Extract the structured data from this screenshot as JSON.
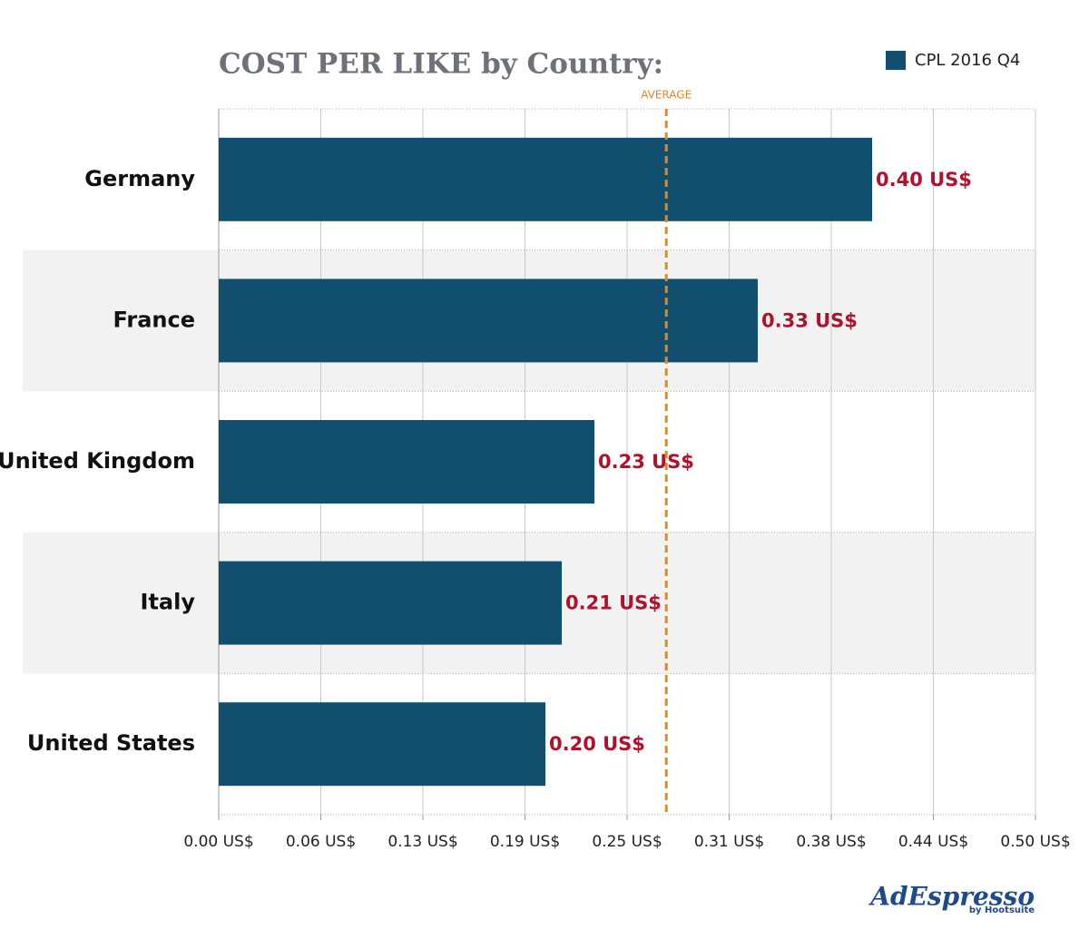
{
  "chart_data": {
    "type": "hbar",
    "title": "COST PER LIKE by Country:",
    "categories": [
      "Germany",
      "France",
      "United Kingdom",
      "Italy",
      "United States"
    ],
    "series": [
      {
        "name": "CPL 2016 Q4",
        "color": "#124f6e",
        "values": [
          0.4,
          0.33,
          0.23,
          0.21,
          0.2
        ],
        "value_labels": [
          "0.40 US$",
          "0.33 US$",
          "0.23 US$",
          "0.21 US$",
          "0.20 US$"
        ]
      }
    ],
    "xlim": [
      0,
      0.5
    ],
    "xticks": [
      {
        "value": 0,
        "label": "0.00 US$"
      },
      {
        "value": 0.0625,
        "label": "0.06 US$"
      },
      {
        "value": 0.125,
        "label": "0.13 US$"
      },
      {
        "value": 0.1875,
        "label": "0.19 US$"
      },
      {
        "value": 0.25,
        "label": "0.25 US$"
      },
      {
        "value": 0.3125,
        "label": "0.31 US$"
      },
      {
        "value": 0.375,
        "label": "0.38 US$"
      },
      {
        "value": 0.4375,
        "label": "0.44 US$"
      },
      {
        "value": 0.5,
        "label": "0.50 US$"
      }
    ],
    "annotations": [
      {
        "label": "AVERAGE",
        "value": 0.274,
        "color": "#e08a1e"
      }
    ],
    "grid": true,
    "legend": "top-right"
  },
  "branding": {
    "name": "AdEspresso",
    "by": "by Hootsuite"
  }
}
